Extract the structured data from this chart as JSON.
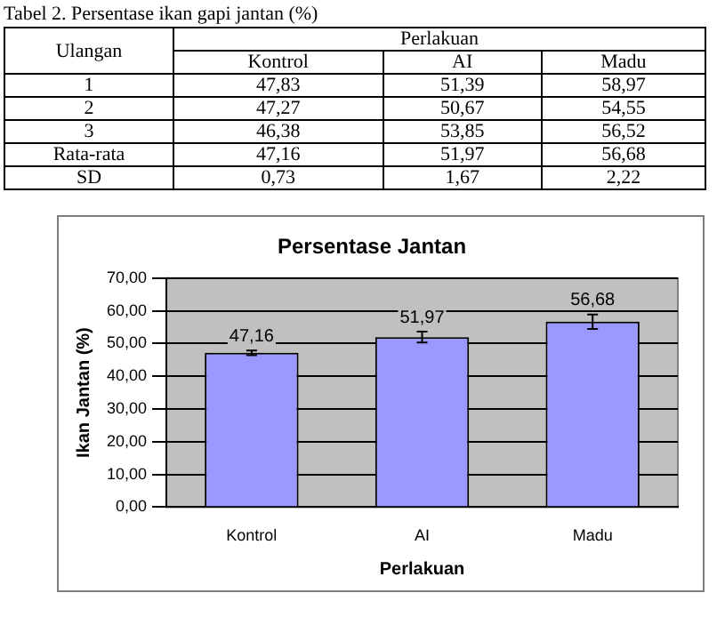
{
  "chart_data": [
    {
      "type": "other",
      "title": "Tabel 2. Persentase ikan gapi jantan (%)",
      "annotations": [
        "Ulangan",
        "Perlakuan"
      ],
      "categories": [
        "Kontrol",
        "AI",
        "Madu"
      ],
      "y_categories": [
        "1",
        "2",
        "3",
        "Rata-rata",
        "SD"
      ],
      "cell_labels": [
        [
          "47,83",
          "51,39",
          "58,97"
        ],
        [
          "47,27",
          "50,67",
          "54,55"
        ],
        [
          "46,38",
          "53,85",
          "56,52"
        ],
        [
          "47,16",
          "51,97",
          "56,68"
        ],
        [
          "0,73",
          "1,67",
          "2,22"
        ]
      ]
    },
    {
      "type": "bar",
      "title": "Persentase Jantan",
      "xlabel": "Perlakuan",
      "ylabel": "Ikan Jantan (%)",
      "categories": [
        "Kontrol",
        "AI",
        "Madu"
      ],
      "values": [
        47.16,
        51.97,
        56.68
      ],
      "color": "#9999ff",
      "errors": [
        0.73,
        1.67,
        2.22
      ],
      "value_labels": [
        "47,16",
        "51,97",
        "56,68"
      ],
      "ylim": [
        0,
        70
      ],
      "yticks": [
        {
          "value": 0,
          "label": "0,00"
        },
        {
          "value": 10,
          "label": "10,00"
        },
        {
          "value": 20,
          "label": "20,00"
        },
        {
          "value": 30,
          "label": "30,00"
        },
        {
          "value": 40,
          "label": "40,00"
        },
        {
          "value": 50,
          "label": "50,00"
        },
        {
          "value": 60,
          "label": "60,00"
        },
        {
          "value": 70,
          "label": "70,00"
        }
      ],
      "grid": "y",
      "legend": false
    }
  ]
}
